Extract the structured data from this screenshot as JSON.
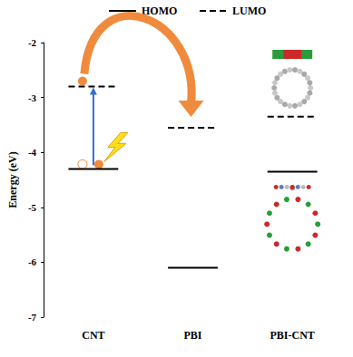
{
  "chart_data": {
    "type": "energy_levels",
    "ylabel": "Energy (eV)",
    "categories": [
      "CNT",
      "PBI",
      "PBI-CNT"
    ],
    "series": [
      {
        "name": "HOMO",
        "color": "#000000",
        "line_style": "solid",
        "values": [
          -4.3,
          -6.1,
          -4.35
        ]
      },
      {
        "name": "LUMO",
        "color": "#000000",
        "line_style": "dashed",
        "values": [
          -2.8,
          -3.55,
          -3.35
        ]
      }
    ],
    "ylim": [
      -7,
      -2
    ],
    "yticks": [
      -7,
      -6,
      -5,
      -4,
      -3,
      -2
    ],
    "legend": "top",
    "grid": false
  }
}
